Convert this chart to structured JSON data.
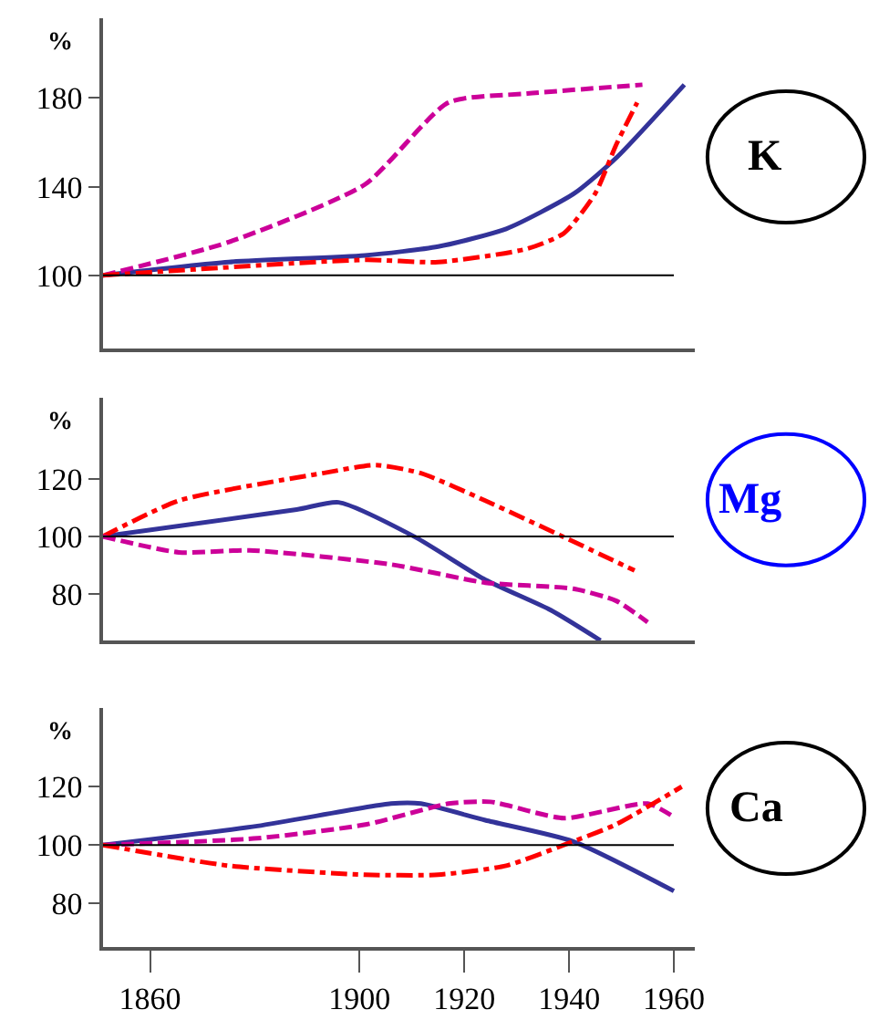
{
  "chart_data": [
    {
      "type": "line",
      "annotations": [
        "K"
      ],
      "ylabel": "%",
      "xlim": [
        1851,
        1964
      ],
      "ylim": [
        67,
        216
      ],
      "yticks": [
        100,
        140,
        180
      ],
      "tick_labels": "y",
      "ref_lines": [
        {
          "axis": "y",
          "value": 100,
          "color": "#000000"
        }
      ],
      "series": [
        {
          "color": "#333399",
          "line_style": "solid",
          "x": [
            1851,
            1875,
            1901,
            1915,
            1928,
            1941,
            1949,
            1962
          ],
          "values": [
            100,
            106,
            109,
            113,
            121,
            137,
            153,
            186
          ]
        },
        {
          "color": "#cc0099",
          "line_style": "dashed",
          "x": [
            1851,
            1875,
            1901,
            1917,
            1932,
            1954
          ],
          "values": [
            100,
            115,
            141,
            178,
            182,
            186
          ]
        },
        {
          "color": "#ff0000",
          "line_style": "dashdot",
          "x": [
            1851,
            1901,
            1915,
            1932,
            1939,
            1945,
            1949,
            1953
          ],
          "values": [
            100,
            107,
            106,
            112,
            119,
            137,
            159,
            178
          ]
        }
      ]
    },
    {
      "type": "line",
      "annotations": [
        "Mg"
      ],
      "ylabel": "%",
      "xlim": [
        1851,
        1964
      ],
      "ylim": [
        64,
        148
      ],
      "yticks": [
        80,
        100,
        120
      ],
      "tick_labels": "y",
      "ref_lines": [
        {
          "axis": "y",
          "value": 100,
          "color": "#000000"
        }
      ],
      "series": [
        {
          "color": "#333399",
          "line_style": "solid",
          "x": [
            1851,
            1888,
            1896,
            1910.6,
            1924,
            1936.5,
            1946
          ],
          "values": [
            100,
            109.3,
            111.8,
            99.8,
            85,
            74.5,
            64
          ]
        },
        {
          "color": "#ff0000",
          "line_style": "dashdot",
          "x": [
            1851,
            1865.5,
            1893,
            1903,
            1911.7,
            1924,
            1939,
            1952.5
          ],
          "values": [
            100,
            112.4,
            121.9,
            124.7,
            121.9,
            112.4,
            99.8,
            88.2
          ]
        },
        {
          "color": "#cc0099",
          "line_style": "dashed",
          "x": [
            1851,
            1865.5,
            1879,
            1906,
            1924,
            1940.8,
            1949,
            1955
          ],
          "values": [
            100,
            94.5,
            95.2,
            90.3,
            84,
            81.9,
            77.7,
            70.3
          ]
        }
      ]
    },
    {
      "type": "line",
      "annotations": [
        "Ca"
      ],
      "ylabel": "%",
      "xlim": [
        1851,
        1964
      ],
      "ylim": [
        65,
        147
      ],
      "yticks": [
        80,
        100,
        120
      ],
      "xticks": [
        1860,
        1900,
        1920,
        1940,
        1960
      ],
      "ref_lines": [
        {
          "axis": "y",
          "value": 100,
          "color": "#000000"
        }
      ],
      "series": [
        {
          "color": "#333399",
          "line_style": "solid",
          "x": [
            1851,
            1880.5,
            1906,
            1911.7,
            1924,
            1940.8,
            1960
          ],
          "values": [
            100,
            106.5,
            114.2,
            114.2,
            108.5,
            101.2,
            84.2
          ]
        },
        {
          "color": "#cc0099",
          "line_style": "dashed",
          "x": [
            1851,
            1880.5,
            1901.4,
            1917,
            1925,
            1939,
            1955,
            1960
          ],
          "values": [
            100,
            102.3,
            107.1,
            114.2,
            114.8,
            109.2,
            114.2,
            109.6
          ]
        },
        {
          "color": "#ff0000",
          "line_style": "dashdot",
          "x": [
            1851,
            1875,
            1901,
            1915,
            1928,
            1939,
            1949,
            1961.5
          ],
          "values": [
            100,
            92.9,
            89.8,
            89.8,
            92.9,
            100,
            107.1,
            120
          ]
        }
      ]
    }
  ]
}
